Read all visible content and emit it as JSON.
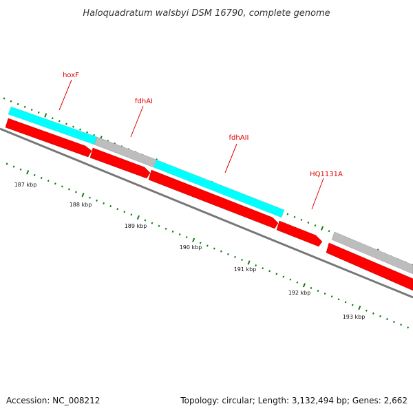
{
  "title": "Haloquadratum walsbyi DSM 16790, complete genome",
  "footer": {
    "accession": "Accession: NC_008212",
    "summary": "Topology: circular; Length: 3,132,494 bp; Genes: 2,662"
  },
  "colors": {
    "cds": "#ff0000",
    "rna": "#00ffff",
    "other": "#bdbdbd",
    "label": "#dd0000",
    "tick": "#0a7d0a",
    "backbone": "#777777"
  },
  "scale": {
    "tick_labels": [
      "187 kbp",
      "188 kbp",
      "189 kbp",
      "190 kbp",
      "191 kbp",
      "192 kbp",
      "193 kbp"
    ]
  },
  "genes": [
    {
      "name": "hoxF"
    },
    {
      "name": "fdhAI"
    },
    {
      "name": "fdhAII"
    },
    {
      "name": "HQ1131A"
    }
  ]
}
